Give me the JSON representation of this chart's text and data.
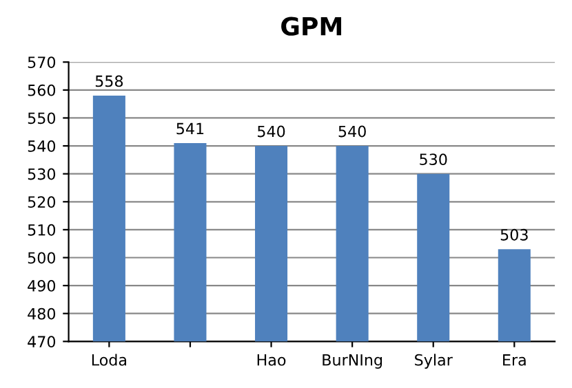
{
  "chart_data": {
    "type": "bar",
    "title": "GPM",
    "categories": [
      "Loda",
      null,
      "Hao",
      "BurNIng",
      "Sylar",
      "Era"
    ],
    "values": [
      558,
      541,
      540,
      540,
      530,
      503
    ],
    "color": "#4f81bd",
    "ylim": [
      470,
      570
    ],
    "yticks": [
      470,
      480,
      490,
      500,
      510,
      520,
      530,
      540,
      550,
      560,
      570
    ],
    "grid": "y",
    "data_labels": true
  }
}
